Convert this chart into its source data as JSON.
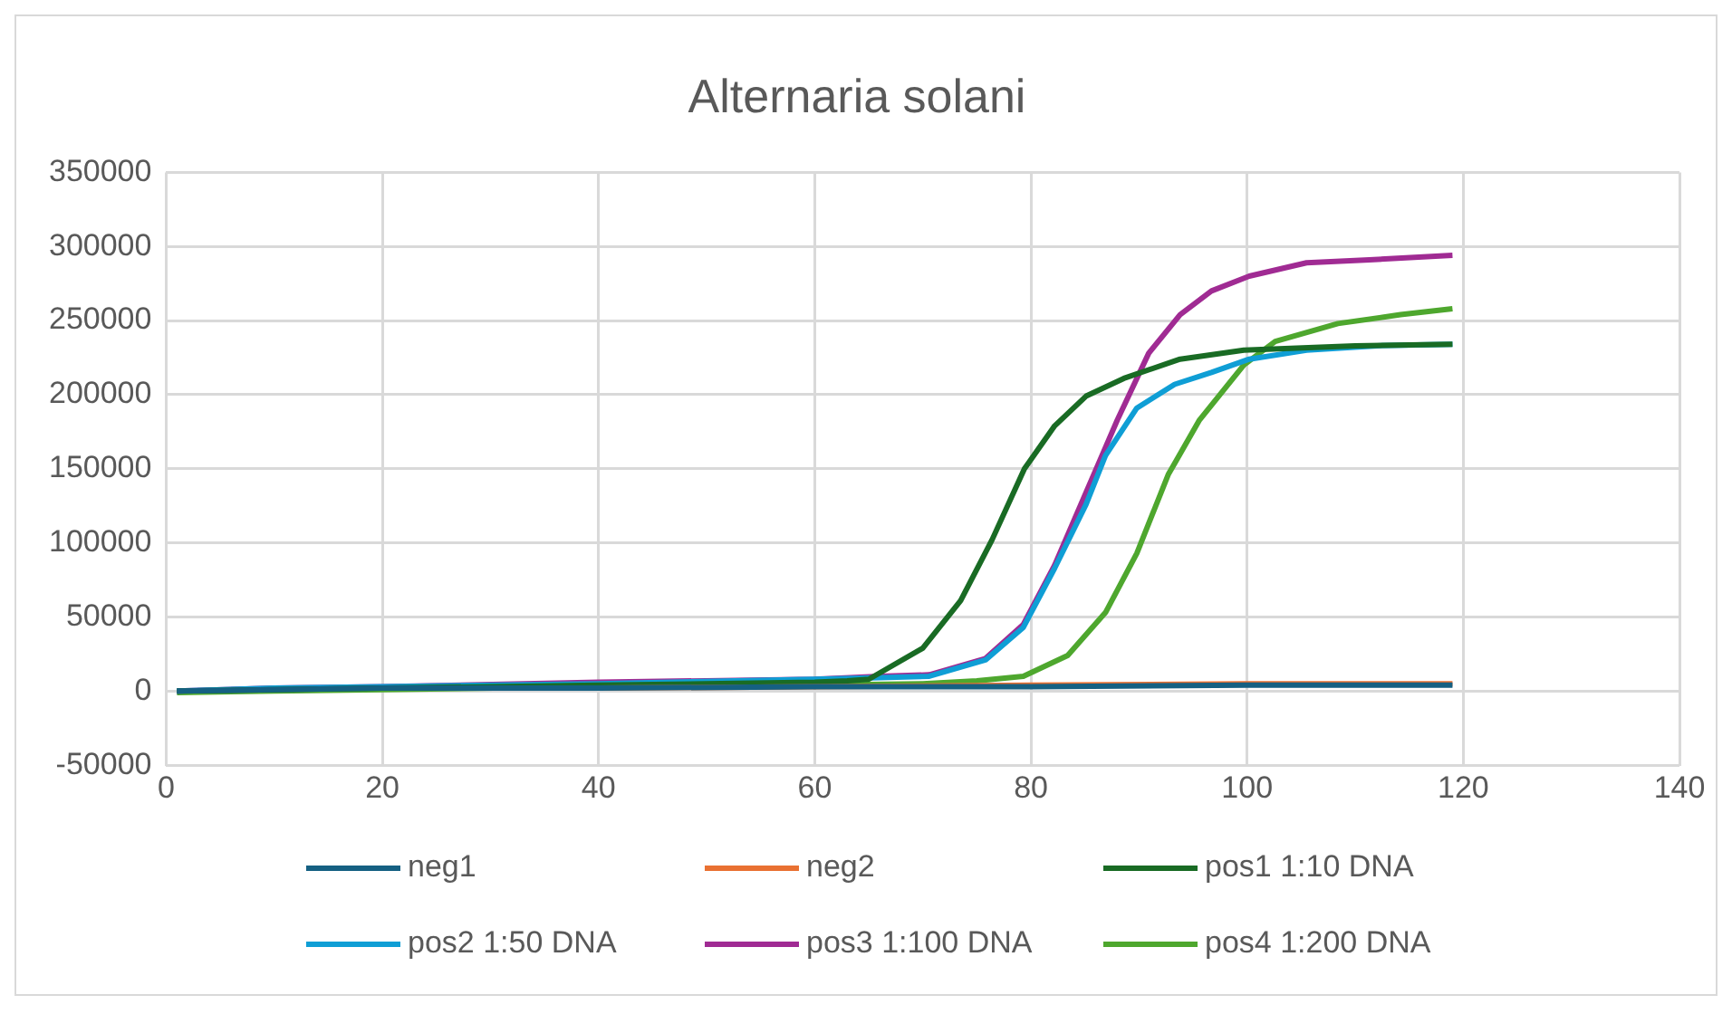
{
  "chart_data": {
    "type": "line",
    "title": "Alternaria solani",
    "xlim": [
      0,
      140
    ],
    "xticks": [
      0,
      20,
      40,
      60,
      80,
      100,
      120,
      140
    ],
    "ylim": [
      -50000,
      350000
    ],
    "yticks": [
      -50000,
      0,
      50000,
      100000,
      150000,
      200000,
      250000,
      300000,
      350000
    ],
    "grid": true,
    "legend": "bottom",
    "marker": "none",
    "line_style": "solid",
    "series": [
      {
        "name": "neg1",
        "color": "#156082",
        "x": [
          1,
          10,
          20,
          40,
          60,
          80,
          100,
          119
        ],
        "values": [
          0,
          1000,
          2000,
          2000,
          3000,
          3000,
          4000,
          4000
        ]
      },
      {
        "name": "neg2",
        "color": "#e97132",
        "x": [
          40,
          60,
          80,
          100,
          119
        ],
        "values": [
          2000,
          3000,
          4000,
          5000,
          5000
        ]
      },
      {
        "name": "pos1 1:10 DNA",
        "color": "#196b24",
        "x": [
          1,
          10,
          20,
          40,
          60,
          63,
          65,
          70,
          73.5,
          76.4,
          79.4,
          82.2,
          85.1,
          88.6,
          93.8,
          99.7,
          110,
          119
        ],
        "values": [
          0,
          1000,
          2000,
          4000,
          6000,
          7000,
          8000,
          29000,
          61000,
          102000,
          150000,
          179000,
          199000,
          211000,
          224000,
          230000,
          233000,
          234000
        ]
      },
      {
        "name": "pos2 1:50 DNA",
        "color": "#0f9ed5",
        "x": [
          1,
          10,
          20,
          40,
          60,
          66,
          70.6,
          75.8,
          79.3,
          82.2,
          85.1,
          86.9,
          89.8,
          93.3,
          96.7,
          100.2,
          105.5,
          112,
          119
        ],
        "values": [
          0,
          2000,
          3000,
          5000,
          8000,
          9000,
          10000,
          21000,
          43000,
          83000,
          126000,
          159000,
          191000,
          207000,
          215000,
          224000,
          230000,
          233000,
          234000
        ]
      },
      {
        "name": "pos3 1:100 DNA",
        "color": "#a02b93",
        "x": [
          1,
          10,
          20,
          40,
          60,
          66,
          70.6,
          75.8,
          79.3,
          82.2,
          85.1,
          88,
          90.9,
          93.8,
          96.7,
          100.2,
          105.5,
          111.3,
          119
        ],
        "values": [
          0,
          2000,
          3000,
          6000,
          8000,
          10000,
          11000,
          22000,
          45000,
          85000,
          134000,
          183000,
          228000,
          254000,
          270000,
          280000,
          289000,
          291000,
          294000
        ]
      },
      {
        "name": "pos4 1:200 DNA",
        "color": "#4ea72e",
        "x": [
          1,
          10,
          20,
          40,
          60,
          70,
          75,
          79.3,
          83.4,
          86.9,
          89.8,
          92.7,
          95.6,
          99.7,
          102.6,
          108.4,
          114.2,
          119
        ],
        "values": [
          -1000,
          0,
          1000,
          3000,
          4000,
          5000,
          7000,
          10000,
          24000,
          53000,
          93000,
          146000,
          183000,
          220000,
          236000,
          248000,
          254000,
          258000
        ]
      }
    ]
  }
}
